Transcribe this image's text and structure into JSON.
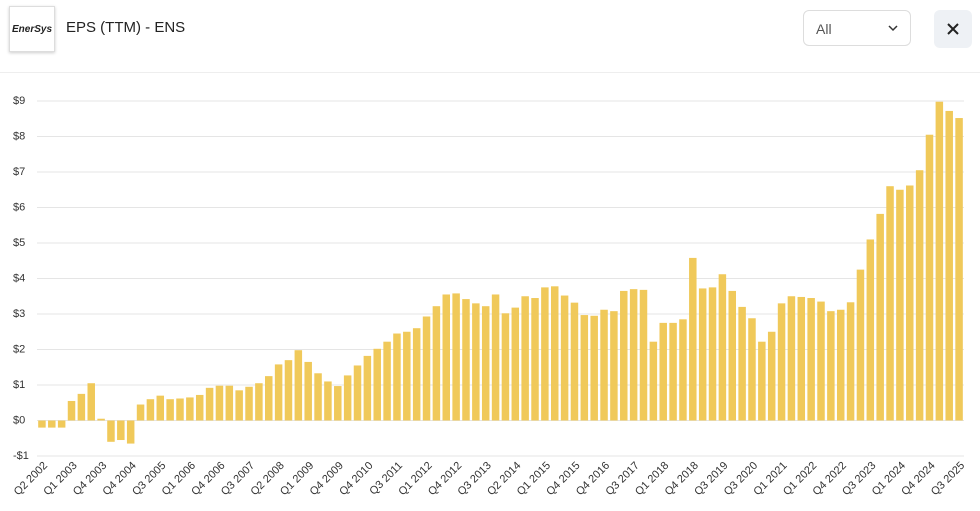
{
  "header": {
    "logo": "EnerSys",
    "title": "EPS (TTM) - ENS",
    "range": "All"
  },
  "chart_data": {
    "type": "bar",
    "color": "#f0c95a",
    "grid": true,
    "ylim": [
      -1,
      9
    ],
    "yticks": [
      {
        "value": -1,
        "label": "-$1"
      },
      {
        "value": 0,
        "label": "$0"
      },
      {
        "value": 1,
        "label": "$1"
      },
      {
        "value": 2,
        "label": "$2"
      },
      {
        "value": 3,
        "label": "$3"
      },
      {
        "value": 4,
        "label": "$4"
      },
      {
        "value": 5,
        "label": "$5"
      },
      {
        "value": 6,
        "label": "$6"
      },
      {
        "value": 7,
        "label": "$7"
      },
      {
        "value": 8,
        "label": "$8"
      },
      {
        "value": 9,
        "label": "$9"
      }
    ],
    "categories": [
      "Q2 2002",
      null,
      null,
      "Q1 2003",
      null,
      null,
      "Q4 2003",
      null,
      null,
      "Q4 2004",
      null,
      null,
      "Q3 2005",
      null,
      null,
      "Q1 2006",
      null,
      null,
      "Q4 2006",
      null,
      null,
      "Q3 2007",
      null,
      null,
      "Q2 2008",
      null,
      null,
      "Q1 2009",
      null,
      null,
      "Q4 2009",
      null,
      null,
      "Q4 2010",
      null,
      null,
      "Q3 2011",
      null,
      null,
      "Q1 2012",
      null,
      null,
      "Q4 2012",
      null,
      null,
      "Q3 2013",
      null,
      null,
      "Q2 2014",
      null,
      null,
      "Q1 2015",
      null,
      null,
      "Q4 2015",
      null,
      null,
      "Q4 2016",
      null,
      null,
      "Q3 2017",
      null,
      null,
      "Q1 2018",
      null,
      null,
      "Q4 2018",
      null,
      null,
      "Q3 2019",
      null,
      null,
      "Q3 2020",
      null,
      null,
      "Q1 2021",
      null,
      null,
      "Q1 2022",
      null,
      null,
      "Q4 2022",
      null,
      null,
      "Q3 2023",
      null,
      null,
      "Q1 2024",
      null,
      null,
      "Q4 2024",
      null,
      null,
      "Q3 2025"
    ],
    "values": [
      -0.2,
      -0.2,
      -0.2,
      0.55,
      0.75,
      1.05,
      0.05,
      -0.6,
      -0.55,
      -0.65,
      0.45,
      0.6,
      0.7,
      0.6,
      0.62,
      0.65,
      0.72,
      0.92,
      0.98,
      0.98,
      0.85,
      0.95,
      1.05,
      1.25,
      1.58,
      1.7,
      1.98,
      1.65,
      1.33,
      1.1,
      0.97,
      1.27,
      1.55,
      1.82,
      2.02,
      2.22,
      2.45,
      2.5,
      2.6,
      2.93,
      3.22,
      3.55,
      3.58,
      3.42,
      3.3,
      3.22,
      3.55,
      3.02,
      3.18,
      3.5,
      3.45,
      3.75,
      3.78,
      3.52,
      3.32,
      2.97,
      2.95,
      3.12,
      3.08,
      3.65,
      3.7,
      3.68,
      2.22,
      2.75,
      2.75,
      2.85,
      4.58,
      3.72,
      3.75,
      4.12,
      3.65,
      3.2,
      2.88,
      2.22,
      2.5,
      3.3,
      3.5,
      3.48,
      3.45,
      3.35,
      3.08,
      3.12,
      3.33,
      4.25,
      5.1,
      5.82,
      6.6,
      6.5,
      6.62,
      7.05,
      8.05,
      8.98,
      8.72,
      8.52
    ]
  }
}
